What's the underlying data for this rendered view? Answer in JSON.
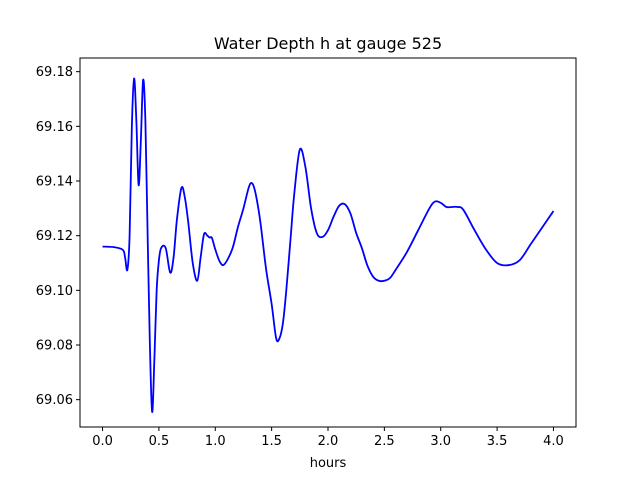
{
  "chart_data": {
    "type": "line",
    "title": "Water Depth h at gauge 525",
    "xlabel": "hours",
    "ylabel": "",
    "xlim": [
      -0.2,
      4.2
    ],
    "ylim": [
      69.05,
      69.185
    ],
    "xticks": [
      0.0,
      0.5,
      1.0,
      1.5,
      2.0,
      2.5,
      3.0,
      3.5,
      4.0
    ],
    "xtick_labels": [
      "0.0",
      "0.5",
      "1.0",
      "1.5",
      "2.0",
      "2.5",
      "3.0",
      "3.5",
      "4.0"
    ],
    "yticks": [
      69.06,
      69.08,
      69.1,
      69.12,
      69.14,
      69.16,
      69.18
    ],
    "ytick_labels": [
      "69.06",
      "69.08",
      "69.10",
      "69.12",
      "69.14",
      "69.16",
      "69.18"
    ],
    "grid": false,
    "series": [
      {
        "color": "#0000ff",
        "x": [
          0.0,
          0.1,
          0.18,
          0.2,
          0.22,
          0.24,
          0.26,
          0.28,
          0.3,
          0.32,
          0.34,
          0.36,
          0.38,
          0.4,
          0.42,
          0.44,
          0.46,
          0.48,
          0.5,
          0.52,
          0.56,
          0.6,
          0.63,
          0.66,
          0.7,
          0.73,
          0.76,
          0.8,
          0.84,
          0.87,
          0.9,
          0.93,
          0.95,
          0.97,
          1.0,
          1.04,
          1.08,
          1.15,
          1.2,
          1.25,
          1.3,
          1.33,
          1.36,
          1.4,
          1.45,
          1.5,
          1.54,
          1.57,
          1.6,
          1.63,
          1.67,
          1.7,
          1.75,
          1.8,
          1.85,
          1.9,
          1.95,
          2.0,
          2.05,
          2.1,
          2.15,
          2.2,
          2.25,
          2.3,
          2.35,
          2.4,
          2.45,
          2.5,
          2.55,
          2.6,
          2.7,
          2.8,
          2.9,
          2.95,
          3.0,
          3.05,
          3.1,
          3.15,
          3.2,
          3.3,
          3.4,
          3.5,
          3.6,
          3.7,
          3.8,
          3.9,
          4.0
        ],
        "y": [
          69.116,
          69.1158,
          69.1148,
          69.112,
          69.1075,
          69.12,
          69.16,
          69.1775,
          69.162,
          69.1385,
          69.155,
          69.177,
          69.162,
          69.12,
          69.08,
          69.0555,
          69.075,
          69.1,
          69.111,
          69.1155,
          69.1155,
          69.1065,
          69.112,
          69.126,
          69.1375,
          69.134,
          69.125,
          69.11,
          69.1035,
          69.112,
          69.1205,
          69.12,
          69.1193,
          69.1192,
          69.115,
          69.1105,
          69.1095,
          69.115,
          69.123,
          69.13,
          69.138,
          69.139,
          69.135,
          69.125,
          69.108,
          69.095,
          69.0825,
          69.0825,
          69.088,
          69.1,
          69.12,
          69.135,
          69.1515,
          69.145,
          69.13,
          69.121,
          69.1195,
          69.122,
          69.127,
          69.131,
          69.1315,
          69.128,
          69.121,
          69.1155,
          69.109,
          69.105,
          69.1035,
          69.1035,
          69.1045,
          69.1075,
          69.114,
          69.122,
          69.13,
          69.1325,
          69.132,
          69.1305,
          69.1305,
          69.1305,
          69.1295,
          69.122,
          69.115,
          69.11,
          69.1092,
          69.111,
          69.117,
          69.123,
          69.129
        ]
      }
    ]
  }
}
